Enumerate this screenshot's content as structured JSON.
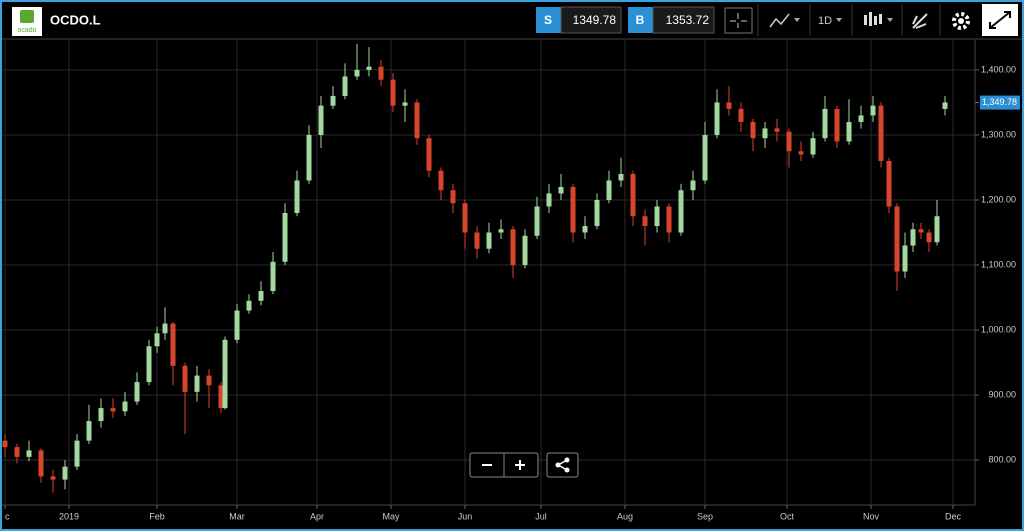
{
  "toolbar": {
    "logo": "ocado",
    "ticker": "OCDO.L",
    "sell_label": "S",
    "sell_price": "1349.78",
    "buy_label": "B",
    "buy_price": "1353.72",
    "interval": "1D"
  },
  "chart_data": {
    "type": "candlestick",
    "up_color": "#a3d9a0",
    "down_color": "#d9452b",
    "grid": true,
    "x": [
      0,
      3,
      6,
      9,
      12,
      15,
      18,
      21,
      24,
      27,
      30,
      33,
      36,
      38,
      40,
      42,
      45,
      48,
      51,
      54,
      55,
      58,
      61,
      64,
      67,
      70,
      73,
      76,
      79,
      82,
      85,
      88,
      91,
      94,
      97,
      100,
      103,
      106,
      109,
      112,
      115,
      118,
      121,
      124,
      127,
      130,
      133,
      136,
      139,
      142,
      145,
      148,
      151,
      154,
      157,
      160,
      163,
      166,
      169,
      172,
      175,
      178,
      181,
      184,
      187,
      190,
      193,
      196,
      199,
      202,
      205,
      208,
      211,
      214,
      217,
      219,
      221,
      223,
      225,
      227,
      229,
      231,
      233,
      235
    ],
    "open": [
      830,
      820,
      805,
      815,
      775,
      770,
      790,
      830,
      860,
      880,
      875,
      890,
      920,
      975,
      995,
      1010,
      945,
      905,
      930,
      915,
      880,
      985,
      1030,
      1045,
      1060,
      1105,
      1180,
      1230,
      1300,
      1345,
      1360,
      1390,
      1400,
      1405,
      1385,
      1345,
      1350,
      1295,
      1245,
      1215,
      1195,
      1150,
      1125,
      1150,
      1155,
      1100,
      1145,
      1190,
      1210,
      1220,
      1150,
      1160,
      1200,
      1230,
      1240,
      1175,
      1160,
      1190,
      1150,
      1215,
      1230,
      1300,
      1350,
      1340,
      1320,
      1295,
      1310,
      1305,
      1275,
      1270,
      1295,
      1340,
      1290,
      1320,
      1330,
      1345,
      1260,
      1190,
      1090,
      1130,
      1155,
      1150,
      1135,
      1340
    ],
    "high": [
      840,
      825,
      830,
      818,
      785,
      800,
      840,
      885,
      895,
      895,
      905,
      935,
      985,
      1005,
      1035,
      1012,
      950,
      945,
      940,
      920,
      990,
      1040,
      1055,
      1075,
      1120,
      1195,
      1245,
      1315,
      1360,
      1375,
      1410,
      1440,
      1435,
      1415,
      1395,
      1370,
      1355,
      1300,
      1250,
      1225,
      1200,
      1160,
      1165,
      1170,
      1160,
      1155,
      1205,
      1225,
      1240,
      1225,
      1175,
      1210,
      1245,
      1265,
      1245,
      1185,
      1200,
      1195,
      1225,
      1245,
      1320,
      1370,
      1375,
      1350,
      1325,
      1320,
      1325,
      1310,
      1290,
      1305,
      1360,
      1345,
      1355,
      1345,
      1360,
      1350,
      1265,
      1195,
      1150,
      1165,
      1165,
      1155,
      1200,
      1360
    ],
    "low": [
      805,
      795,
      798,
      765,
      750,
      755,
      785,
      825,
      850,
      865,
      868,
      885,
      915,
      965,
      985,
      915,
      840,
      890,
      880,
      872,
      878,
      980,
      1025,
      1038,
      1055,
      1100,
      1175,
      1225,
      1280,
      1340,
      1355,
      1385,
      1390,
      1375,
      1335,
      1320,
      1285,
      1235,
      1200,
      1180,
      1125,
      1110,
      1118,
      1140,
      1080,
      1095,
      1140,
      1180,
      1200,
      1135,
      1140,
      1155,
      1195,
      1220,
      1160,
      1130,
      1150,
      1135,
      1145,
      1200,
      1225,
      1295,
      1330,
      1305,
      1275,
      1280,
      1290,
      1250,
      1260,
      1265,
      1290,
      1280,
      1285,
      1310,
      1320,
      1250,
      1180,
      1060,
      1080,
      1120,
      1140,
      1120,
      1130,
      1330
    ],
    "close": [
      820,
      805,
      815,
      775,
      770,
      790,
      830,
      860,
      880,
      875,
      890,
      920,
      975,
      995,
      1010,
      945,
      905,
      930,
      915,
      880,
      985,
      1030,
      1045,
      1060,
      1105,
      1180,
      1230,
      1300,
      1345,
      1360,
      1390,
      1400,
      1405,
      1385,
      1345,
      1350,
      1295,
      1245,
      1215,
      1195,
      1150,
      1125,
      1150,
      1155,
      1100,
      1145,
      1190,
      1210,
      1220,
      1150,
      1160,
      1200,
      1230,
      1240,
      1175,
      1160,
      1190,
      1150,
      1215,
      1230,
      1300,
      1350,
      1340,
      1320,
      1295,
      1310,
      1305,
      1275,
      1270,
      1295,
      1340,
      1290,
      1320,
      1330,
      1345,
      1260,
      1190,
      1090,
      1130,
      1155,
      1150,
      1135,
      1175,
      1350
    ],
    "xlim": [
      -1.25,
      242.5
    ],
    "xticks": [
      {
        "value": 0,
        "label": "c"
      },
      {
        "value": 16,
        "label": "2019"
      },
      {
        "value": 38,
        "label": "Feb"
      },
      {
        "value": 58,
        "label": "Mar"
      },
      {
        "value": 78,
        "label": "Apr"
      },
      {
        "value": 96.5,
        "label": "May"
      },
      {
        "value": 115,
        "label": "Jun"
      },
      {
        "value": 134,
        "label": "Jul"
      },
      {
        "value": 155,
        "label": "Aug"
      },
      {
        "value": 175,
        "label": "Sep"
      },
      {
        "value": 195.5,
        "label": "Oct"
      },
      {
        "value": 216.5,
        "label": "Nov"
      },
      {
        "value": 237,
        "label": "Dec"
      }
    ],
    "ylim": [
      731,
      1446
    ],
    "yticks": [
      {
        "value": 800,
        "label": "800.00"
      },
      {
        "value": 900,
        "label": "900.00"
      },
      {
        "value": 1000,
        "label": "1,000.00"
      },
      {
        "value": 1100,
        "label": "1,100.00"
      },
      {
        "value": 1200,
        "label": "1,200.00"
      },
      {
        "value": 1300,
        "label": "1,300.00"
      },
      {
        "value": 1400,
        "label": "1,400.00"
      }
    ],
    "last_price": {
      "value": 1349.78,
      "label": "1,349.78"
    },
    "last_price_color": "#2b8fd4"
  }
}
